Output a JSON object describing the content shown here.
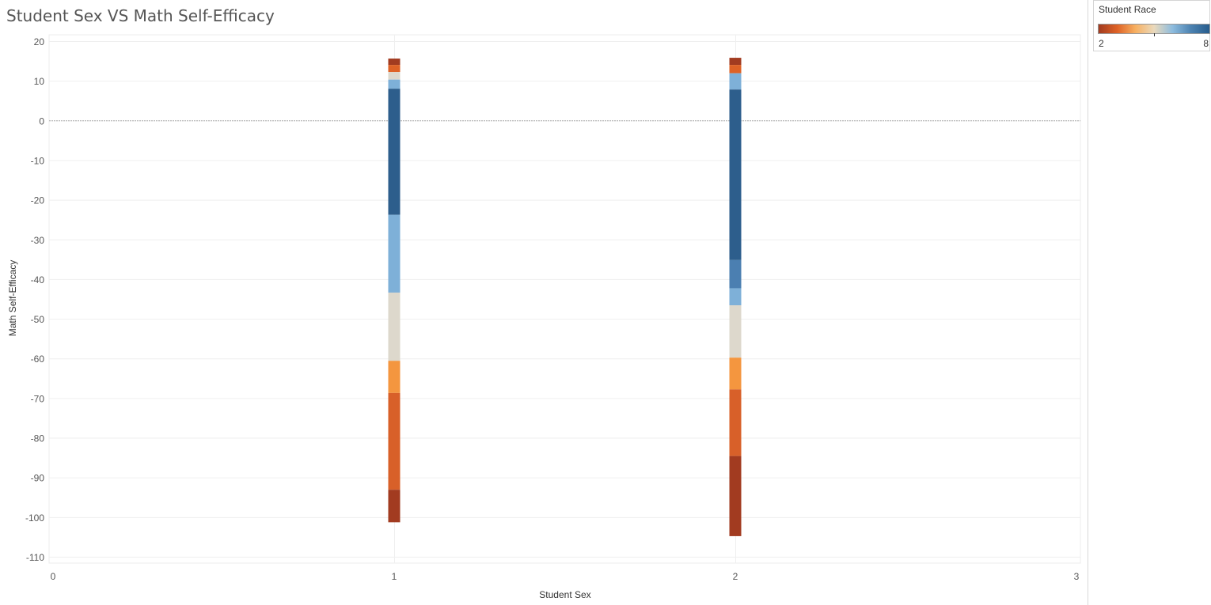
{
  "title": "Student Sex VS Math Self-Efficacy",
  "legend": {
    "title": "Student Race",
    "min_label": "2",
    "max_label": "8",
    "gradient_colors": [
      "#a23b20",
      "#de6226",
      "#f7b061",
      "#ead9bc",
      "#8dbcde",
      "#4c82b1",
      "#275c8c"
    ]
  },
  "chart_data": {
    "type": "bar",
    "subtype": "stacked-vertical-segments",
    "xlabel": "Student Sex",
    "ylabel": "Math Self-Efficacy",
    "xlim": [
      0,
      3
    ],
    "ylim": [
      -110,
      20
    ],
    "x_ticks": [
      "0",
      "1",
      "2",
      "3"
    ],
    "y_ticks": [
      "20",
      "10",
      "0",
      "-10",
      "-20",
      "-30",
      "-40",
      "-50",
      "-60",
      "-70",
      "-80",
      "-90",
      "-100",
      "-110"
    ],
    "grid": true,
    "zero_line": true,
    "legend_placement": "top-right",
    "bars": [
      {
        "x": 1,
        "segments": [
          {
            "from": 14,
            "to": 15.6,
            "color": "#a23b20"
          },
          {
            "from": 12.2,
            "to": 14,
            "color": "#de6226"
          },
          {
            "from": 10.3,
            "to": 12.2,
            "color": "#ddd8cc"
          },
          {
            "from": 8,
            "to": 10.3,
            "color": "#7eb0d8"
          },
          {
            "from": -23.8,
            "to": 8,
            "color": "#2d5e8c"
          },
          {
            "from": -43.4,
            "to": -23.8,
            "color": "#7eb0d8"
          },
          {
            "from": -60.6,
            "to": -43.4,
            "color": "#ddd8cc"
          },
          {
            "from": -68.7,
            "to": -60.6,
            "color": "#f4963f"
          },
          {
            "from": -93.1,
            "to": -68.7,
            "color": "#d86029"
          },
          {
            "from": -101.3,
            "to": -93.1,
            "color": "#a23b20"
          }
        ]
      },
      {
        "x": 2,
        "segments": [
          {
            "from": 14,
            "to": 15.8,
            "color": "#a23b20"
          },
          {
            "from": 11.9,
            "to": 14,
            "color": "#de6226"
          },
          {
            "from": 7.8,
            "to": 11.9,
            "color": "#7eb0d8"
          },
          {
            "from": -35.2,
            "to": 7.8,
            "color": "#2d5e8c"
          },
          {
            "from": -42.3,
            "to": -35.2,
            "color": "#4b7fb1"
          },
          {
            "from": -46.6,
            "to": -42.3,
            "color": "#7eb0d8"
          },
          {
            "from": -59.8,
            "to": -46.6,
            "color": "#ddd8cc"
          },
          {
            "from": -67.8,
            "to": -59.8,
            "color": "#f4963f"
          },
          {
            "from": -84.6,
            "to": -67.8,
            "color": "#d86029"
          },
          {
            "from": -104.8,
            "to": -84.6,
            "color": "#a23b20"
          }
        ]
      }
    ]
  }
}
